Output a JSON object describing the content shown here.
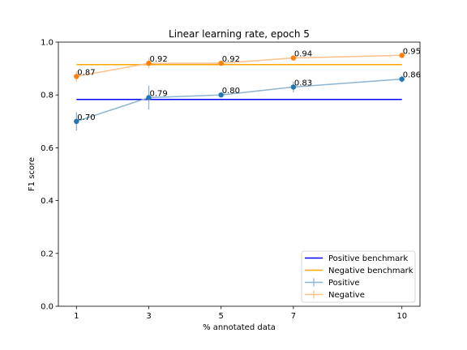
{
  "chart_data": {
    "type": "line",
    "title": "Linear learning rate, epoch 5",
    "xlabel": "% annotated data",
    "ylabel": "F1 score",
    "xlim": [
      0.5,
      10.5
    ],
    "ylim": [
      0.0,
      1.0
    ],
    "xticks": [
      1,
      3,
      5,
      7,
      10
    ],
    "yticks": [
      0.0,
      0.2,
      0.4,
      0.6,
      0.8,
      1.0
    ],
    "ytick_labels": [
      "0.0",
      "0.2",
      "0.4",
      "0.6",
      "0.8",
      "1.0"
    ],
    "grid": false,
    "legend_position": "lower-right",
    "benchmarks": [
      {
        "name": "Positive benchmark",
        "value": 0.783,
        "color": "#0000ff"
      },
      {
        "name": "Negative benchmark",
        "value": 0.915,
        "color": "#ffa500"
      }
    ],
    "series": [
      {
        "name": "Positive",
        "line_color": "#8cb4d3",
        "marker_color": "#1f77b4",
        "x": [
          1,
          3,
          5,
          7,
          10
        ],
        "y": [
          0.7,
          0.79,
          0.8,
          0.83,
          0.86
        ],
        "labels": [
          "0.70",
          "0.79",
          "0.80",
          "0.83",
          "0.86"
        ],
        "err": [
          0.035,
          0.045,
          0.008,
          0.02,
          0.012
        ]
      },
      {
        "name": "Negative",
        "line_color": "#ffc08a",
        "marker_color": "#ff7f0e",
        "x": [
          1,
          3,
          5,
          7,
          10
        ],
        "y": [
          0.87,
          0.92,
          0.92,
          0.94,
          0.95
        ],
        "labels": [
          "0.87",
          "0.92",
          "0.92",
          "0.94",
          "0.95"
        ],
        "err": [
          0.02,
          0.02,
          0.008,
          0.008,
          0.006
        ]
      }
    ]
  }
}
